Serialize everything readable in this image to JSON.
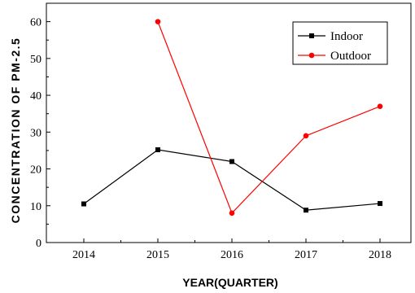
{
  "chart_data": {
    "type": "line",
    "title": "",
    "xlabel": "YEAR(QUARTER)",
    "ylabel": "CONCENTRATION OF PM-2.5",
    "x": [
      "2014",
      "2015",
      "2016",
      "2017",
      "2018"
    ],
    "ylim": [
      0,
      65
    ],
    "yticks": [
      0,
      10,
      20,
      30,
      40,
      50,
      60
    ],
    "grid": false,
    "legend_position": "top-right",
    "series": [
      {
        "name": "Indoor",
        "color": "#000000",
        "marker": "square",
        "values": [
          10.5,
          25.2,
          22.0,
          8.8,
          10.6
        ]
      },
      {
        "name": "Outdoor",
        "color": "#ff0000",
        "marker": "circle",
        "values": [
          null,
          60.0,
          8.0,
          29.0,
          37.0
        ]
      }
    ]
  }
}
